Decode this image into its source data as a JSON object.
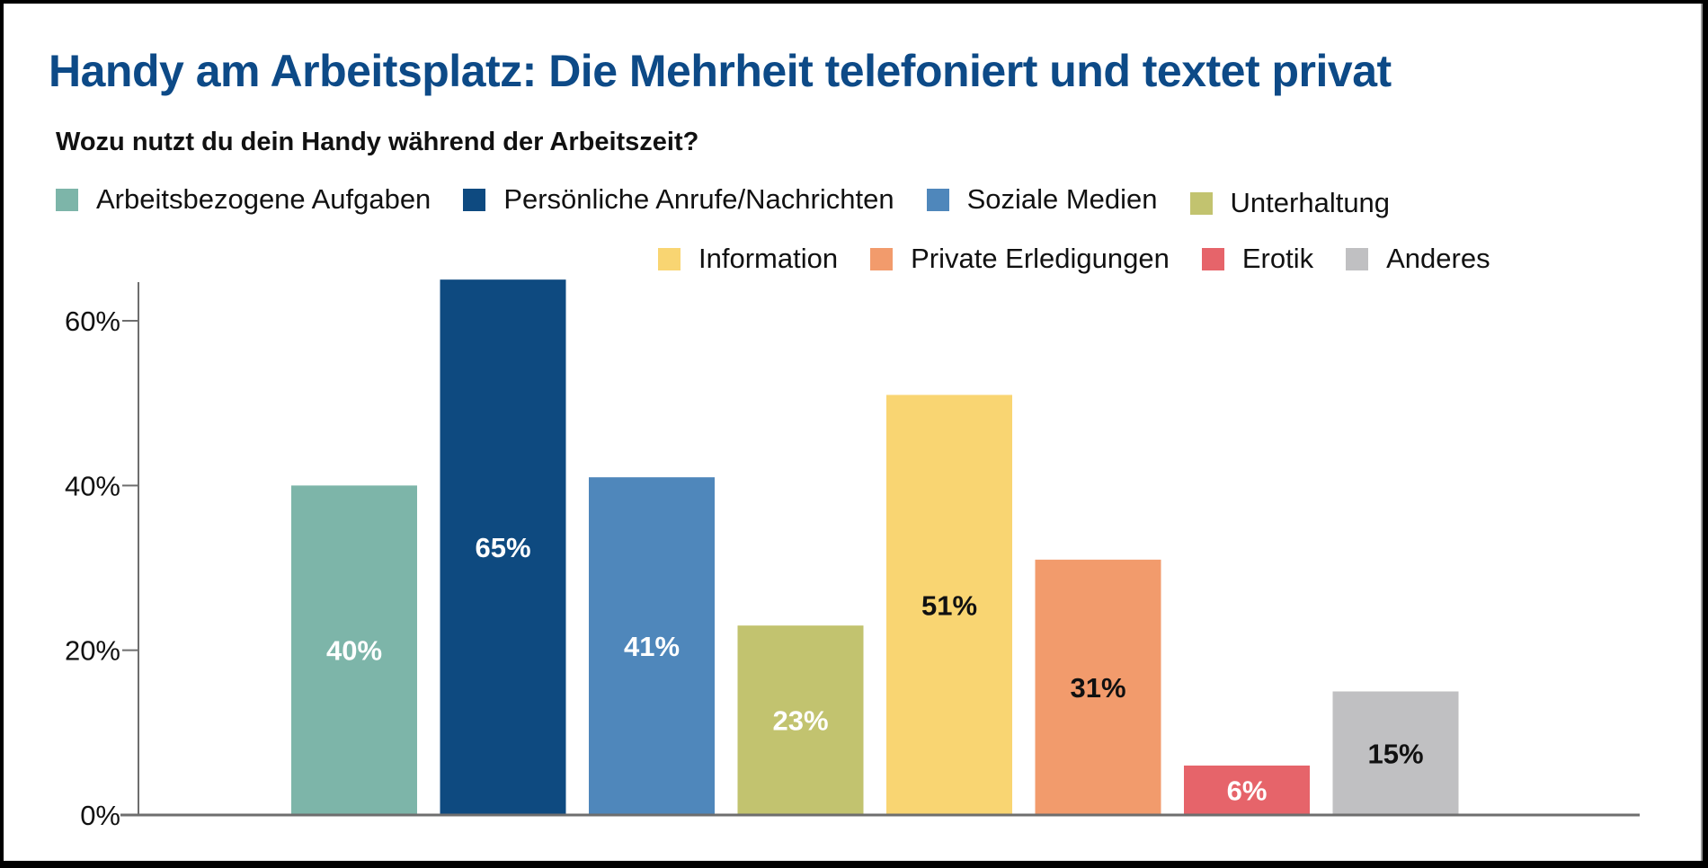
{
  "header": {
    "title": "Handy am Arbeitsplatz: Die Mehrheit telefoniert und textet privat",
    "subtitle": "Wozu nutzt du dein Handy während der Arbeitszeit?"
  },
  "legend": {
    "row1": [
      {
        "label": "Arbeitsbezogene Aufgaben",
        "color": "#7db5a9"
      },
      {
        "label": "Persönliche Anrufe/Nachrichten",
        "color": "#0e4a80"
      },
      {
        "label": "Soziale Medien",
        "color": "#4f87bb"
      },
      {
        "label": "Unterhaltung",
        "color": "#c2c36f"
      }
    ],
    "row2": [
      {
        "label": "Information",
        "color": "#f9d572"
      },
      {
        "label": "Private Erledigungen",
        "color": "#f29b6c"
      },
      {
        "label": "Erotik",
        "color": "#e6646a"
      },
      {
        "label": "Anderes",
        "color": "#c0c0c2"
      }
    ]
  },
  "chart_data": {
    "type": "bar",
    "title": "Handy am Arbeitsplatz: Die Mehrheit telefoniert und textet privat",
    "subtitle": "Wozu nutzt du dein Handy während der Arbeitszeit?",
    "xlabel": "",
    "ylabel": "",
    "ylim": [
      0,
      65
    ],
    "yticks": [
      0,
      20,
      40,
      60
    ],
    "ytick_labels": [
      "0%",
      "20%",
      "40%",
      "60%"
    ],
    "grid": false,
    "legend_position": "top",
    "categories": [
      "Arbeitsbezogene Aufgaben",
      "Persönliche Anrufe/Nachrichten",
      "Soziale Medien",
      "Unterhaltung",
      "Information",
      "Private Erledigungen",
      "Erotik",
      "Anderes"
    ],
    "values": [
      40,
      65,
      41,
      23,
      51,
      31,
      6,
      15
    ],
    "data_labels": [
      "40%",
      "65%",
      "41%",
      "23%",
      "51%",
      "31%",
      "6%",
      "15%"
    ],
    "colors": [
      "#7db5a9",
      "#0e4a80",
      "#4f87bb",
      "#c2c36f",
      "#f9d572",
      "#f29b6c",
      "#e6646a",
      "#c0c0c2"
    ],
    "label_colors": [
      "#ffffff",
      "#ffffff",
      "#ffffff",
      "#ffffff",
      "#111111",
      "#111111",
      "#ffffff",
      "#111111"
    ]
  }
}
